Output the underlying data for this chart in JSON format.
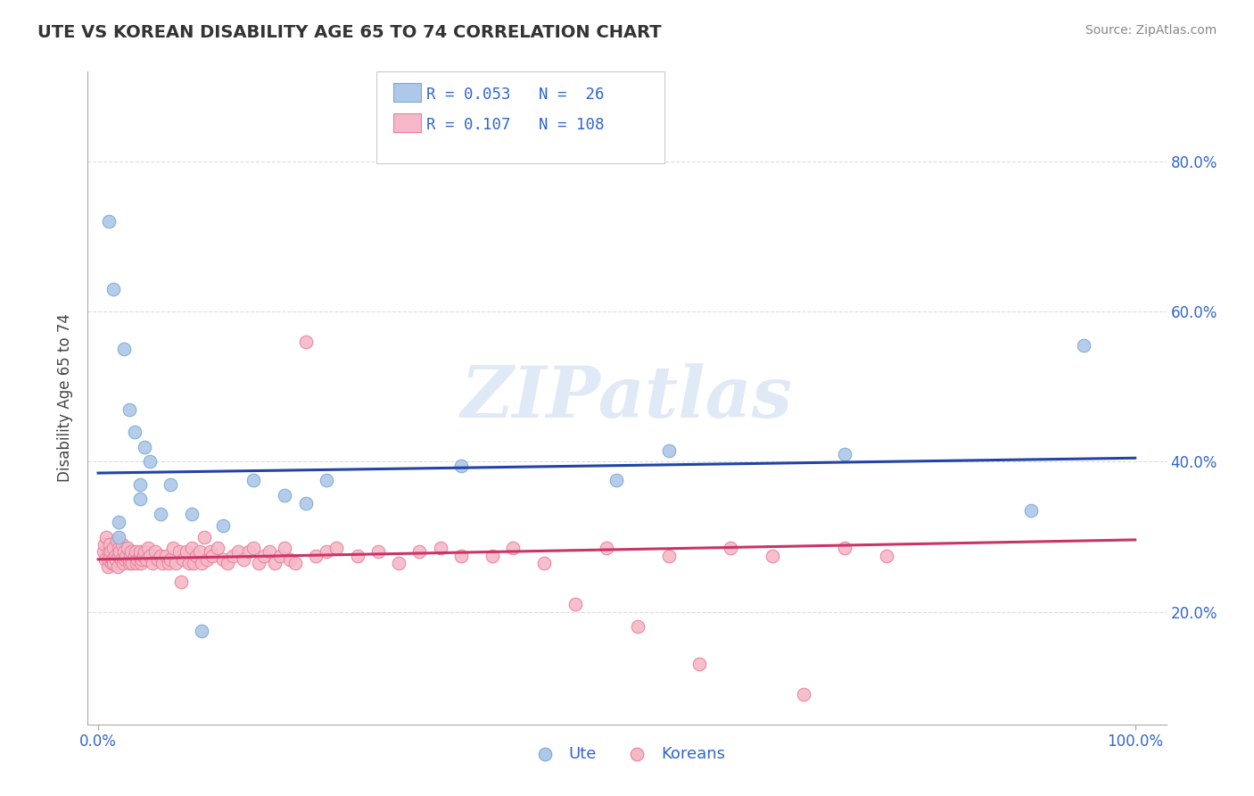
{
  "title": "UTE VS KOREAN DISABILITY AGE 65 TO 74 CORRELATION CHART",
  "source": "Source: ZipAtlas.com",
  "ylabel": "Disability Age 65 to 74",
  "ute_color": "#adc8e8",
  "ute_edge_color": "#7aaad0",
  "korean_color": "#f5b8c8",
  "korean_edge_color": "#e8809a",
  "line_ute_color": "#2244aa",
  "line_korean_color": "#cc3366",
  "legend_text_color": "#3366cc",
  "tick_color": "#3366cc",
  "ute_R": 0.053,
  "ute_N": 26,
  "korean_R": 0.107,
  "korean_N": 108,
  "ylim_low": 0.05,
  "ylim_high": 0.92,
  "xlim_low": -0.01,
  "xlim_high": 1.03,
  "ytick_vals": [
    0.2,
    0.4,
    0.6,
    0.8
  ],
  "ytick_labels": [
    "20.0%",
    "40.0%",
    "60.0%",
    "80.0%"
  ],
  "xtick_vals": [
    0.0,
    1.0
  ],
  "xtick_labels": [
    "0.0%",
    "100.0%"
  ],
  "ute_x": [
    0.01,
    0.015,
    0.02,
    0.02,
    0.025,
    0.03,
    0.035,
    0.04,
    0.04,
    0.045,
    0.05,
    0.06,
    0.07,
    0.09,
    0.1,
    0.12,
    0.15,
    0.18,
    0.2,
    0.22,
    0.35,
    0.5,
    0.55,
    0.72,
    0.9,
    0.95
  ],
  "ute_y": [
    0.72,
    0.63,
    0.32,
    0.3,
    0.55,
    0.47,
    0.44,
    0.37,
    0.35,
    0.42,
    0.4,
    0.33,
    0.37,
    0.33,
    0.175,
    0.315,
    0.375,
    0.355,
    0.345,
    0.375,
    0.395,
    0.375,
    0.415,
    0.41,
    0.335,
    0.555
  ],
  "korean_x": [
    0.005,
    0.006,
    0.007,
    0.008,
    0.009,
    0.01,
    0.01,
    0.011,
    0.012,
    0.013,
    0.014,
    0.015,
    0.015,
    0.016,
    0.017,
    0.018,
    0.019,
    0.02,
    0.02,
    0.021,
    0.022,
    0.023,
    0.024,
    0.025,
    0.026,
    0.027,
    0.028,
    0.03,
    0.03,
    0.031,
    0.032,
    0.033,
    0.035,
    0.036,
    0.037,
    0.038,
    0.04,
    0.04,
    0.041,
    0.042,
    0.044,
    0.045,
    0.046,
    0.048,
    0.05,
    0.052,
    0.055,
    0.058,
    0.06,
    0.062,
    0.065,
    0.068,
    0.07,
    0.072,
    0.075,
    0.078,
    0.08,
    0.082,
    0.085,
    0.088,
    0.09,
    0.092,
    0.095,
    0.098,
    0.1,
    0.102,
    0.105,
    0.108,
    0.11,
    0.115,
    0.12,
    0.125,
    0.13,
    0.135,
    0.14,
    0.145,
    0.15,
    0.155,
    0.16,
    0.165,
    0.17,
    0.175,
    0.18,
    0.185,
    0.19,
    0.2,
    0.21,
    0.22,
    0.23,
    0.25,
    0.27,
    0.29,
    0.31,
    0.33,
    0.35,
    0.38,
    0.4,
    0.43,
    0.46,
    0.49,
    0.52,
    0.55,
    0.58,
    0.61,
    0.65,
    0.68,
    0.72,
    0.76
  ],
  "korean_y": [
    0.28,
    0.29,
    0.27,
    0.3,
    0.26,
    0.28,
    0.27,
    0.29,
    0.28,
    0.265,
    0.27,
    0.285,
    0.265,
    0.275,
    0.27,
    0.295,
    0.26,
    0.285,
    0.275,
    0.28,
    0.27,
    0.29,
    0.265,
    0.28,
    0.27,
    0.275,
    0.285,
    0.265,
    0.27,
    0.275,
    0.28,
    0.265,
    0.275,
    0.28,
    0.265,
    0.27,
    0.275,
    0.28,
    0.265,
    0.27,
    0.275,
    0.28,
    0.27,
    0.285,
    0.275,
    0.265,
    0.28,
    0.27,
    0.275,
    0.265,
    0.275,
    0.265,
    0.27,
    0.285,
    0.265,
    0.28,
    0.24,
    0.27,
    0.28,
    0.265,
    0.285,
    0.265,
    0.275,
    0.28,
    0.265,
    0.3,
    0.27,
    0.28,
    0.275,
    0.285,
    0.27,
    0.265,
    0.275,
    0.28,
    0.27,
    0.28,
    0.285,
    0.265,
    0.275,
    0.28,
    0.265,
    0.275,
    0.285,
    0.27,
    0.265,
    0.56,
    0.275,
    0.28,
    0.285,
    0.275,
    0.28,
    0.265,
    0.28,
    0.285,
    0.275,
    0.275,
    0.285,
    0.265,
    0.21,
    0.285,
    0.18,
    0.275,
    0.13,
    0.285,
    0.275,
    0.09,
    0.285,
    0.275
  ],
  "background_color": "#ffffff",
  "watermark_text": "ZIPatlas",
  "watermark_color": "#ccddf0",
  "grid_color": "#dddddd",
  "title_fontsize": 14,
  "source_fontsize": 10,
  "tick_fontsize": 12,
  "ylabel_fontsize": 12
}
